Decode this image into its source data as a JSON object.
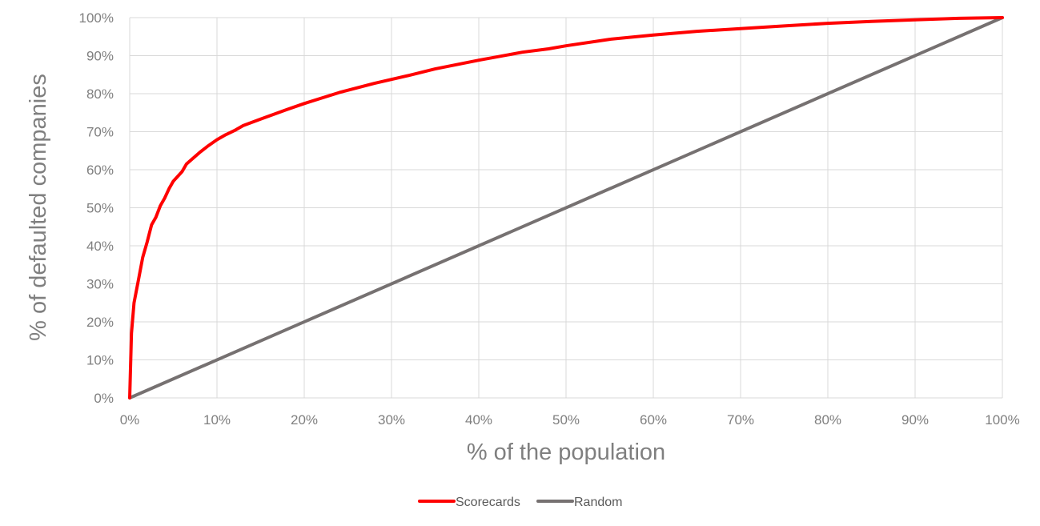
{
  "chart_data": {
    "type": "line",
    "xlabel": "% of the population",
    "ylabel": "% of defaulted companies",
    "xlim": [
      0,
      100
    ],
    "ylim": [
      0,
      100
    ],
    "x_ticks": [
      "0%",
      "10%",
      "20%",
      "30%",
      "40%",
      "50%",
      "60%",
      "70%",
      "80%",
      "90%",
      "100%"
    ],
    "y_ticks": [
      "0%",
      "10%",
      "20%",
      "30%",
      "40%",
      "50%",
      "60%",
      "70%",
      "80%",
      "90%",
      "100%"
    ],
    "grid": true,
    "legend_position": "bottom",
    "series": [
      {
        "name": "Scorecards",
        "color": "#ff0000",
        "x": [
          0,
          0.2,
          0.5,
          1,
          1.5,
          2,
          2.5,
          3,
          3.5,
          4,
          4.5,
          5,
          6,
          6.5,
          7,
          8,
          9,
          10,
          11,
          12,
          13,
          15,
          18,
          20,
          24,
          28,
          32,
          35,
          40,
          45,
          48,
          50,
          55,
          60,
          65,
          70,
          75,
          80,
          85,
          90,
          95,
          100
        ],
        "y": [
          0,
          17,
          25,
          31,
          37,
          41,
          45.5,
          47.5,
          50.5,
          52.5,
          55,
          57,
          59.5,
          61.5,
          62.5,
          64.5,
          66.3,
          67.9,
          69.2,
          70.3,
          71.6,
          73.3,
          75.8,
          77.4,
          80.3,
          82.7,
          84.8,
          86.5,
          88.8,
          90.9,
          91.8,
          92.6,
          94.3,
          95.4,
          96.4,
          97.1,
          97.8,
          98.5,
          99,
          99.4,
          99.8,
          100
        ]
      },
      {
        "name": "Random",
        "color": "#767171",
        "x": [
          0,
          100
        ],
        "y": [
          0,
          100
        ]
      }
    ]
  }
}
